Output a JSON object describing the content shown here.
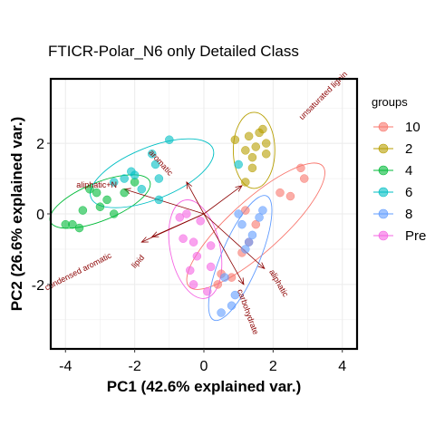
{
  "chart_data": {
    "type": "scatter",
    "title": "FTICR-Polar_N6 only Detailed Class",
    "xlabel": "PC1 (42.6% explained var.)",
    "ylabel": "PC2 (26.6% explained var.)",
    "xlim": [
      -4.4,
      4.4
    ],
    "ylim": [
      -3.8,
      3.8
    ],
    "xticks": [
      -4,
      -2,
      0,
      2,
      4
    ],
    "xtick_labels": [
      "-4",
      "-2",
      "0",
      "2",
      "4"
    ],
    "yticks": [
      -2,
      0,
      2
    ],
    "ytick_labels": [
      "-2",
      "0",
      "2"
    ],
    "grid": true,
    "legend_title": "groups",
    "legend_position": "right",
    "series": [
      {
        "name": "10",
        "color": "#F8766D",
        "points": [
          [
            1.2,
            0.1
          ],
          [
            1.5,
            -0.3
          ],
          [
            2.2,
            0.6
          ],
          [
            2.5,
            0.5
          ],
          [
            2.8,
            1.3
          ],
          [
            2.9,
            1.0
          ],
          [
            1.3,
            -0.8
          ],
          [
            0.8,
            -1.8
          ],
          [
            0.4,
            -2.0
          ],
          [
            1.1,
            -1.1
          ],
          [
            0.5,
            -1.7
          ]
        ],
        "ellipse": {
          "cx": 1.5,
          "cy": -0.35,
          "rx": 2.6,
          "ry": 0.75,
          "angle": 42
        }
      },
      {
        "name": "2",
        "color": "#B79F00",
        "points": [
          [
            1.3,
            2.2
          ],
          [
            1.6,
            2.3
          ],
          [
            1.8,
            2.0
          ],
          [
            1.7,
            2.4
          ],
          [
            0.9,
            2.1
          ],
          [
            1.5,
            1.9
          ],
          [
            1.8,
            1.7
          ],
          [
            1.4,
            1.6
          ],
          [
            1.2,
            1.8
          ],
          [
            1.2,
            0.9
          ],
          [
            1.4,
            1.3
          ]
        ],
        "ellipse": {
          "cx": 1.45,
          "cy": 1.8,
          "rx": 0.6,
          "ry": 1.1,
          "angle": 0
        }
      },
      {
        "name": "4",
        "color": "#00BA38",
        "points": [
          [
            -4.0,
            -0.3
          ],
          [
            -3.8,
            -0.3
          ],
          [
            -3.6,
            -0.4
          ],
          [
            -3.5,
            0.1
          ],
          [
            -3.3,
            0.7
          ],
          [
            -3.0,
            0.2
          ],
          [
            -2.8,
            0.4
          ],
          [
            -2.3,
            0.6
          ],
          [
            -2.6,
            0.0
          ],
          [
            -3.1,
            0.6
          ],
          [
            -2.0,
            0.9
          ]
        ],
        "ellipse": {
          "cx": -3.0,
          "cy": 0.35,
          "rx": 1.55,
          "ry": 0.55,
          "angle": 22
        }
      },
      {
        "name": "6",
        "color": "#00BFC4",
        "points": [
          [
            -1.0,
            2.1
          ],
          [
            -1.5,
            1.7
          ],
          [
            -2.1,
            1.2
          ],
          [
            -2.3,
            1.0
          ],
          [
            -1.3,
            1.0
          ],
          [
            -1.3,
            0.4
          ],
          [
            -1.4,
            1.4
          ],
          [
            -2.6,
            0.9
          ],
          [
            -1.8,
            0.7
          ],
          [
            -2.0,
            1.1
          ],
          [
            1.0,
            1.4
          ]
        ],
        "ellipse": {
          "cx": -1.5,
          "cy": 1.15,
          "rx": 1.9,
          "ry": 0.75,
          "angle": 22
        }
      },
      {
        "name": "8",
        "color": "#619CFF",
        "points": [
          [
            1.0,
            0.0
          ],
          [
            1.7,
            0.1
          ],
          [
            1.4,
            -0.6
          ],
          [
            1.2,
            -1.0
          ],
          [
            0.6,
            -1.8
          ],
          [
            0.9,
            -2.3
          ],
          [
            0.5,
            -2.8
          ],
          [
            0.8,
            -2.6
          ],
          [
            1.6,
            -0.1
          ],
          [
            1.1,
            -0.3
          ],
          [
            1.3,
            -0.8
          ]
        ],
        "ellipse": {
          "cx": 1.05,
          "cy": -1.25,
          "rx": 0.55,
          "ry": 1.95,
          "angle": -23
        }
      },
      {
        "name": "Pre",
        "color": "#F564E3",
        "points": [
          [
            -0.7,
            -0.1
          ],
          [
            -0.5,
            0.0
          ],
          [
            -0.1,
            -0.2
          ],
          [
            -0.3,
            -0.8
          ],
          [
            0.2,
            -0.9
          ],
          [
            0.2,
            -1.5
          ],
          [
            -0.2,
            -1.2
          ],
          [
            -0.4,
            -1.6
          ],
          [
            -0.3,
            -2.0
          ],
          [
            0.1,
            -2.2
          ],
          [
            -0.6,
            -0.7
          ]
        ],
        "ellipse": {
          "cx": -0.25,
          "cy": -1.0,
          "rx": 0.72,
          "ry": 1.45,
          "angle": 12
        }
      }
    ],
    "loadings": [
      {
        "label": "unsaturated lignin",
        "x": 3.5,
        "y": 3.3,
        "end": [
          1.1,
          0.8
        ],
        "angle": -45
      },
      {
        "label": "aromatic",
        "x": -1.3,
        "y": 1.4,
        "end": [
          -0.5,
          0.9
        ],
        "angle": 48
      },
      {
        "label": "aliphatic+N",
        "x": -3.1,
        "y": 0.75,
        "end": [
          -2.3,
          0.7
        ],
        "angle": 0
      },
      {
        "label": "condensed aromatic",
        "x": -3.6,
        "y": -1.7,
        "end": [
          -1.8,
          -0.8
        ],
        "angle": -27
      },
      {
        "label": "lipid",
        "x": -1.85,
        "y": -1.4,
        "end": [
          -1.5,
          -0.65
        ],
        "angle": -48
      },
      {
        "label": "aliphatic",
        "x": 2.1,
        "y": -2.0,
        "end": [
          1.75,
          -1.55
        ],
        "angle": 60
      },
      {
        "label": "carbohydrate",
        "x": 1.2,
        "y": -2.8,
        "end": [
          1.15,
          -2.0
        ],
        "angle": 70
      }
    ],
    "loadings_origin": [
      0,
      0
    ]
  }
}
